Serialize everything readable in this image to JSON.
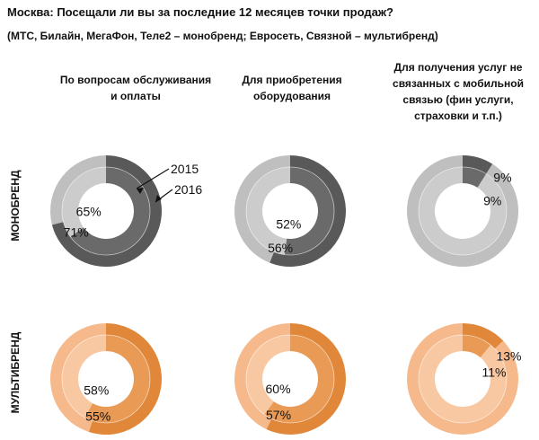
{
  "title": "Москва: Посещали ли вы за последние 12 месяцев точки продаж?",
  "subtitle": "(МТС, Билайн, МегаФон, Теле2 – монобренд; Евросеть, Связной – мультибренд)",
  "columns": [
    "По вопросам обслуживания и оплаты",
    "Для приобретения оборудования",
    "Для получения услуг не связанных с мобильной связью (фин услуги, страховки и т.п.)"
  ],
  "rows": [
    "МОНОБРЕНД",
    "МУЛЬТИБРЕНД"
  ],
  "legend": {
    "year_outer": "2015",
    "year_inner": "2016"
  },
  "colors": {
    "mono_dark": "#595959",
    "mono_light": "#bfbfbf",
    "mono_dark_inner": "#6a6a6a",
    "mono_light_inner": "#cccccc",
    "multi_dark": "#e0873a",
    "multi_light": "#f6b98c",
    "multi_dark_inner": "#e99a55",
    "multi_light_inner": "#f8c8a3"
  },
  "chart_data": {
    "type": "pie",
    "variant": "nested-donut",
    "rings": [
      "2015 (outer)",
      "2016 (inner)"
    ],
    "charts": [
      {
        "row": "МОНОБРЕНД",
        "column": "По вопросам обслуживания и оплаты",
        "y2015": 71,
        "y2016": 65,
        "label_2015": "71%",
        "label_2016": "65%"
      },
      {
        "row": "МОНОБРЕНД",
        "column": "Для приобретения оборудования",
        "y2015": 56,
        "y2016": 52,
        "label_2015": "56%",
        "label_2016": "52%"
      },
      {
        "row": "МОНОБРЕНД",
        "column": "Для получения услуг не связанных с мобильной связью (фин услуги, страховки и т.п.)",
        "y2015": 9,
        "y2016": 9,
        "label_2015": "9%",
        "label_2016": "9%"
      },
      {
        "row": "МУЛЬТИБРЕНД",
        "column": "По вопросам обслуживания и оплаты",
        "y2015": 55,
        "y2016": 58,
        "label_2015": "55%",
        "label_2016": "58%"
      },
      {
        "row": "МУЛЬТИБРЕНД",
        "column": "Для приобретения оборудования",
        "y2015": 57,
        "y2016": 60,
        "label_2015": "57%",
        "label_2016": "60%"
      },
      {
        "row": "МУЛЬТИБРЕНД",
        "column": "Для получения услуг не связанных с мобильной связью (фин услуги, страховки и т.п.)",
        "y2015": 13,
        "y2016": 11,
        "label_2015": "13%",
        "label_2016": "11%"
      }
    ]
  }
}
